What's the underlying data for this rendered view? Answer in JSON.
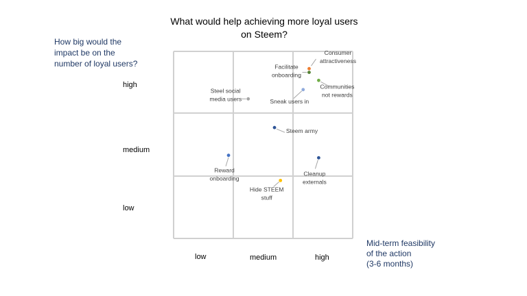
{
  "chart_data": {
    "type": "scatter",
    "title": "What would help achieving more loyal users\non Steem?",
    "xlabel": "Mid-term feasibility\nof the action\n(3-6 months)",
    "ylabel": "How big would the\nimpact be on the\nnumber of loyal users?",
    "xlim": [
      0,
      3
    ],
    "ylim": [
      0,
      3
    ],
    "xticks": [
      "low",
      "medium",
      "high"
    ],
    "yticks": [
      "low",
      "medium",
      "high"
    ],
    "grid": true,
    "points": [
      {
        "name": "Consumer attractiveness",
        "lines": [
          "Consumer",
          "attractiveness"
        ],
        "x": 2.27,
        "y": 2.72,
        "color": "#ed7d31"
      },
      {
        "name": "Facilitate onboarding",
        "lines": [
          "Facilitate",
          "onboarding"
        ],
        "x": 2.27,
        "y": 2.66,
        "color": "#548235"
      },
      {
        "name": "Communities not rewards",
        "lines": [
          "Communities",
          "not rewards"
        ],
        "x": 2.43,
        "y": 2.53,
        "color": "#70ad47"
      },
      {
        "name": "Steel social media users",
        "lines": [
          "Steel social",
          "media users"
        ],
        "x": 1.25,
        "y": 2.23,
        "color": "#a5a5a5"
      },
      {
        "name": "Sneak users in",
        "lines": [
          "Sneak users in"
        ],
        "x": 2.17,
        "y": 2.38,
        "color": "#8faadc"
      },
      {
        "name": "Steem army",
        "lines": [
          "Steem army"
        ],
        "x": 1.69,
        "y": 1.77,
        "color": "#2f5597"
      },
      {
        "name": "Reward onboarding",
        "lines": [
          "Reward",
          "onboarding"
        ],
        "x": 0.92,
        "y": 1.33,
        "color": "#4472c4"
      },
      {
        "name": "Cleanup externals",
        "lines": [
          "Cleanup",
          "externals"
        ],
        "x": 2.43,
        "y": 1.29,
        "color": "#2f5597"
      },
      {
        "name": "Hide STEEM stuff",
        "lines": [
          "Hide STEEM",
          "stuff"
        ],
        "x": 1.79,
        "y": 0.93,
        "color": "#ffc000"
      }
    ]
  }
}
